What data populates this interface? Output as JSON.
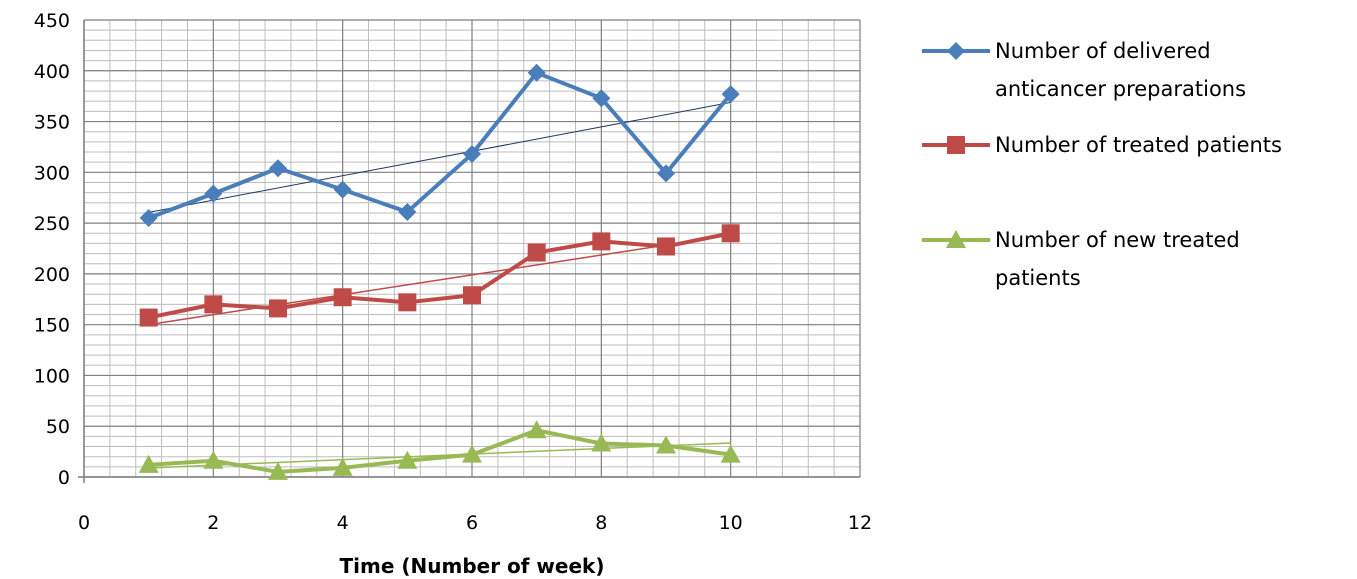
{
  "chart_data": {
    "type": "scatter",
    "xlabel": "Time (Number of week)",
    "ylabel": "",
    "xlim": [
      0,
      12
    ],
    "ylim": [
      0,
      450
    ],
    "xticks": [
      "0",
      "2",
      "4",
      "6",
      "8",
      "10",
      "12"
    ],
    "yticks": [
      "0",
      "50",
      "100",
      "150",
      "200",
      "250",
      "300",
      "350",
      "400",
      "450"
    ],
    "grid": true,
    "legend_position": "right",
    "x": [
      1,
      2,
      3,
      4,
      5,
      6,
      7,
      8,
      9,
      10
    ],
    "series": [
      {
        "name": "Number of delivered anticancer preparations",
        "legend_lines": [
          "Number of delivered",
          "anticancer preparations"
        ],
        "color": "#4a7ebb",
        "marker": "diamond",
        "values": [
          255,
          279,
          304,
          283,
          261,
          318,
          398,
          373,
          299,
          377
        ],
        "trendline": true
      },
      {
        "name": "Number of treated patients",
        "legend_lines": [
          "Number of treated patients"
        ],
        "color": "#be4b48",
        "marker": "square",
        "values": [
          157,
          170,
          166,
          177,
          172,
          179,
          221,
          232,
          227,
          240
        ],
        "trendline": true
      },
      {
        "name": "Number of new treated patients",
        "legend_lines": [
          "Number of new treated",
          "patients"
        ],
        "color": "#98b954",
        "marker": "triangle",
        "values": [
          12,
          16,
          5,
          9,
          16,
          22,
          46,
          33,
          31,
          22
        ],
        "trendline": true
      }
    ]
  }
}
